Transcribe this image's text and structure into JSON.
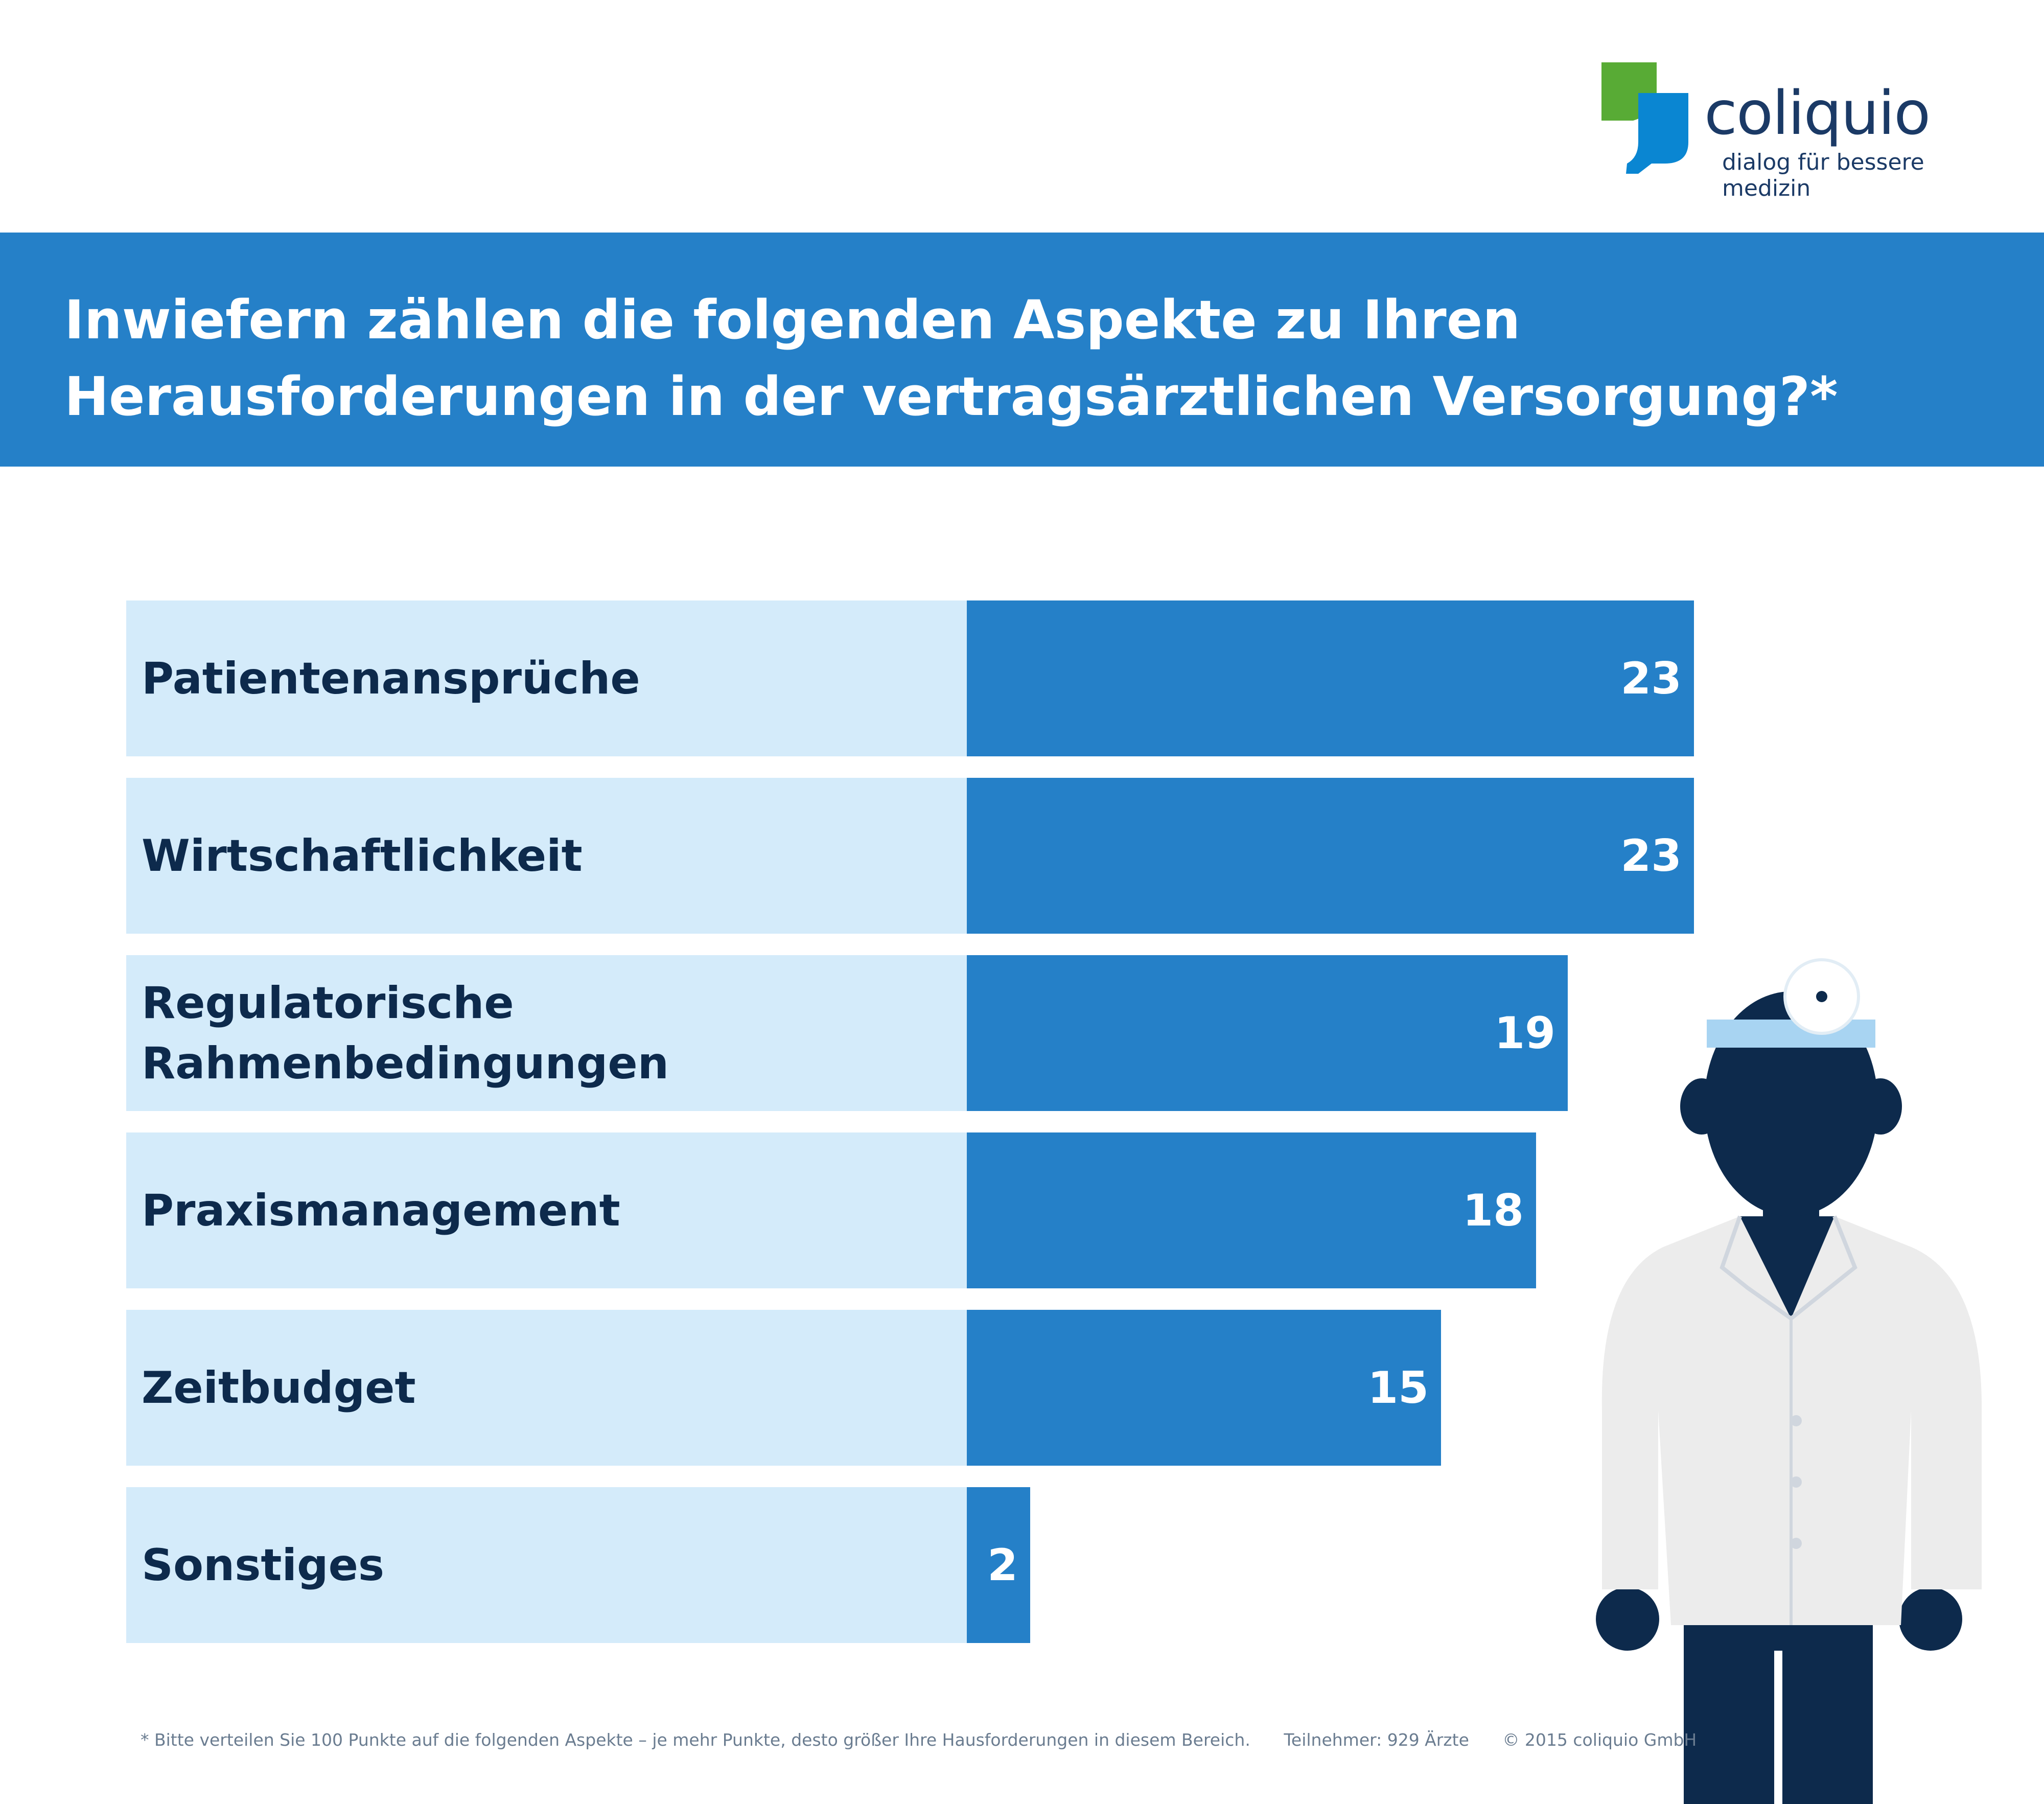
{
  "logo": {
    "word": "coliquio",
    "tagline": "dialog für bessere medizin"
  },
  "header": {
    "title_line1": "Inwiefern zählen die folgenden Aspekte zu Ihren",
    "title_line2": "Herausforderungen in der vertragsärztlichen Versorgung?*"
  },
  "chart_data": {
    "type": "bar",
    "orientation": "horizontal",
    "title": "Inwiefern zählen die folgenden Aspekte zu Ihren Herausforderungen in der vertragsärztlichen Versorgung?*",
    "categories": [
      "Patientenansprüche",
      "Wirtschaftlichkeit",
      "Regulatorische Rahmenbedingungen",
      "Praxismanagement",
      "Zeitbudget",
      "Sonstiges"
    ],
    "category_lines": [
      [
        "Patientenansprüche"
      ],
      [
        "Wirtschaftlichkeit"
      ],
      [
        "Regulatorische",
        "Rahmenbedingungen"
      ],
      [
        "Praxismanagement"
      ],
      [
        "Zeitbudget"
      ],
      [
        "Sonstiges"
      ]
    ],
    "values": [
      23,
      23,
      19,
      18,
      15,
      2
    ],
    "xlim": [
      0,
      23
    ],
    "grid": false,
    "colors": {
      "bar": "#2580c8",
      "row_background": "#d4ebfa",
      "label": "#0d2a4c"
    }
  },
  "footer": {
    "note": "* Bitte verteilen Sie 100 Punkte auf die folgenden Aspekte – je mehr Punkte, desto größer Ihre Hausforderungen in diesem Bereich.",
    "participants": "Teilnehmer: 929 Ärzte",
    "copyright": "© 2015 coliquio GmbH"
  },
  "colors": {
    "header": "#2580c8",
    "logo_green": "#58ab35",
    "logo_blue": "#0a86d2",
    "logo_text": "#1b3a66"
  }
}
